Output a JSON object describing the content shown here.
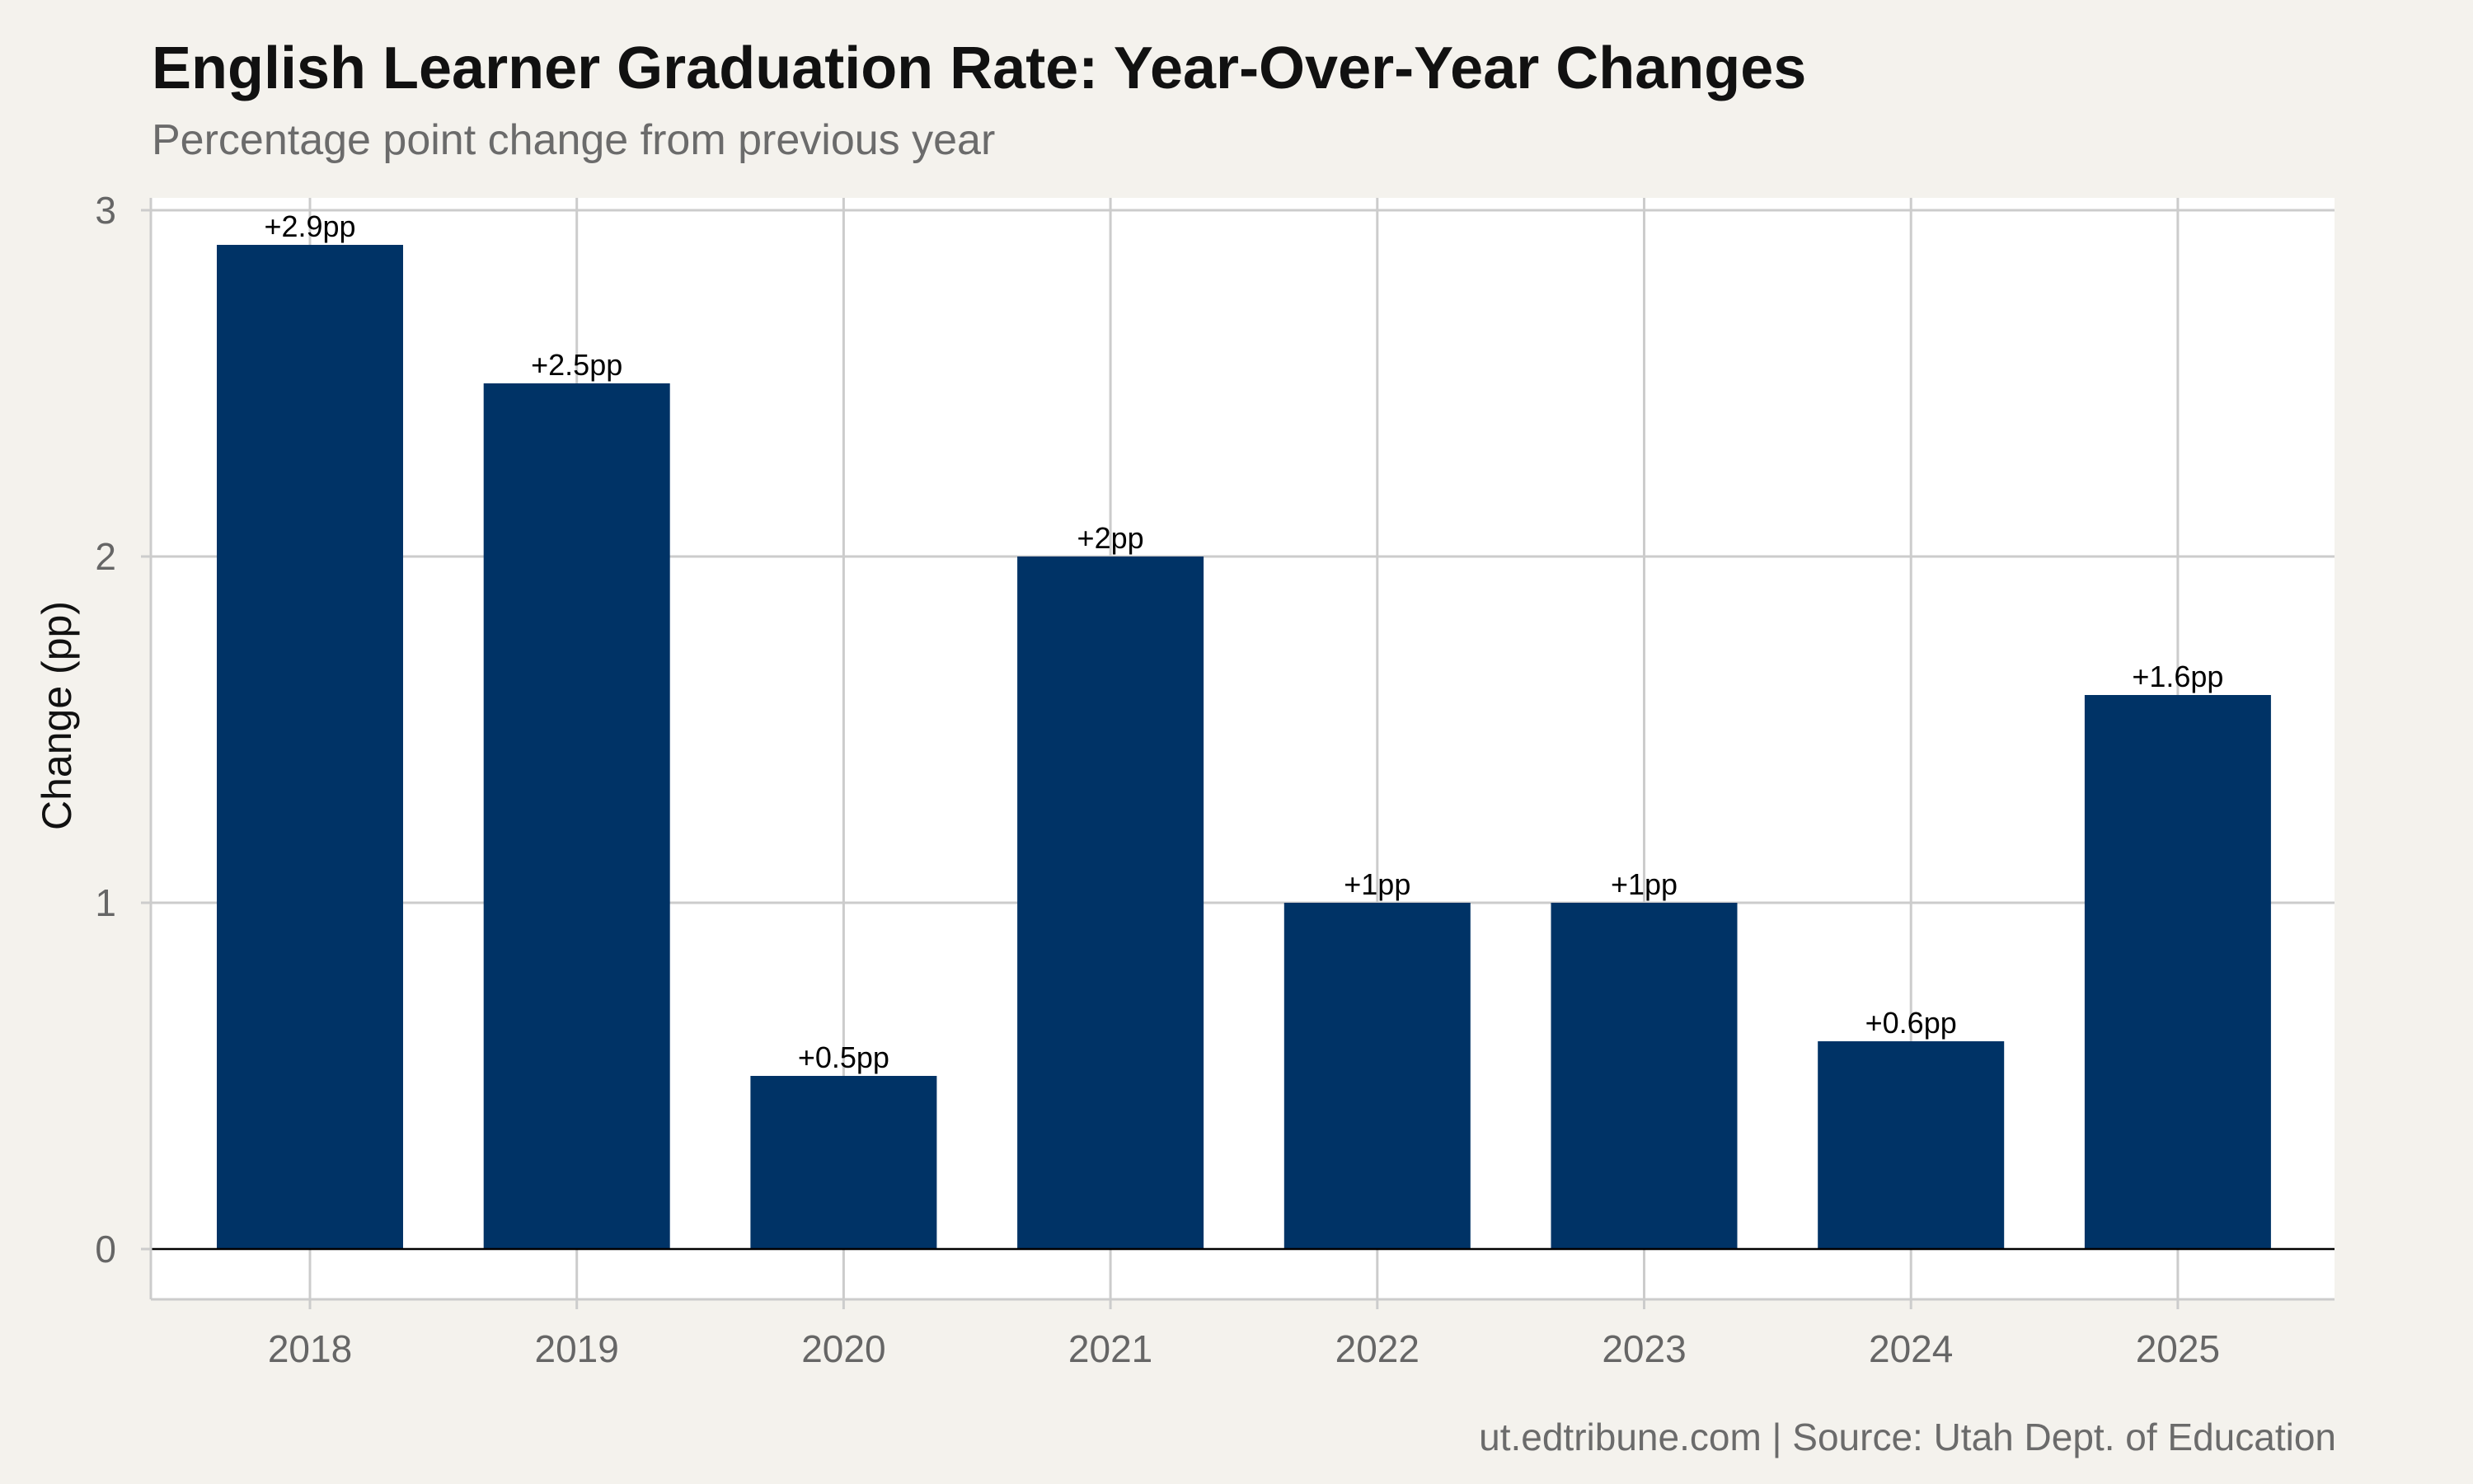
{
  "colors": {
    "background": "#f4f2ed",
    "panel": "#ffffff",
    "bar": "#003366",
    "grid": "#cccccc",
    "zero_line": "#000000"
  },
  "chart_data": {
    "type": "bar",
    "title": "English Learner Graduation Rate: Year-Over-Year Changes",
    "subtitle": "Percentage point change from previous year",
    "caption": "ut.edtribune.com | Source: Utah Dept. of Education",
    "xlabel": "",
    "ylabel": "Change (pp)",
    "categories": [
      "2018",
      "2019",
      "2020",
      "2021",
      "2022",
      "2023",
      "2024",
      "2025"
    ],
    "values": [
      2.9,
      2.5,
      0.5,
      2,
      1,
      1,
      0.6,
      1.6
    ],
    "data_labels": [
      "+2.9pp",
      "+2.5pp",
      "+0.5pp",
      "+2pp",
      "+1pp",
      "+1pp",
      "+0.6pp",
      "+1.6pp"
    ],
    "yticks": [
      "0",
      "1",
      "2",
      "3"
    ],
    "ylim": [
      0,
      3
    ],
    "grid": true,
    "legend": "none"
  }
}
